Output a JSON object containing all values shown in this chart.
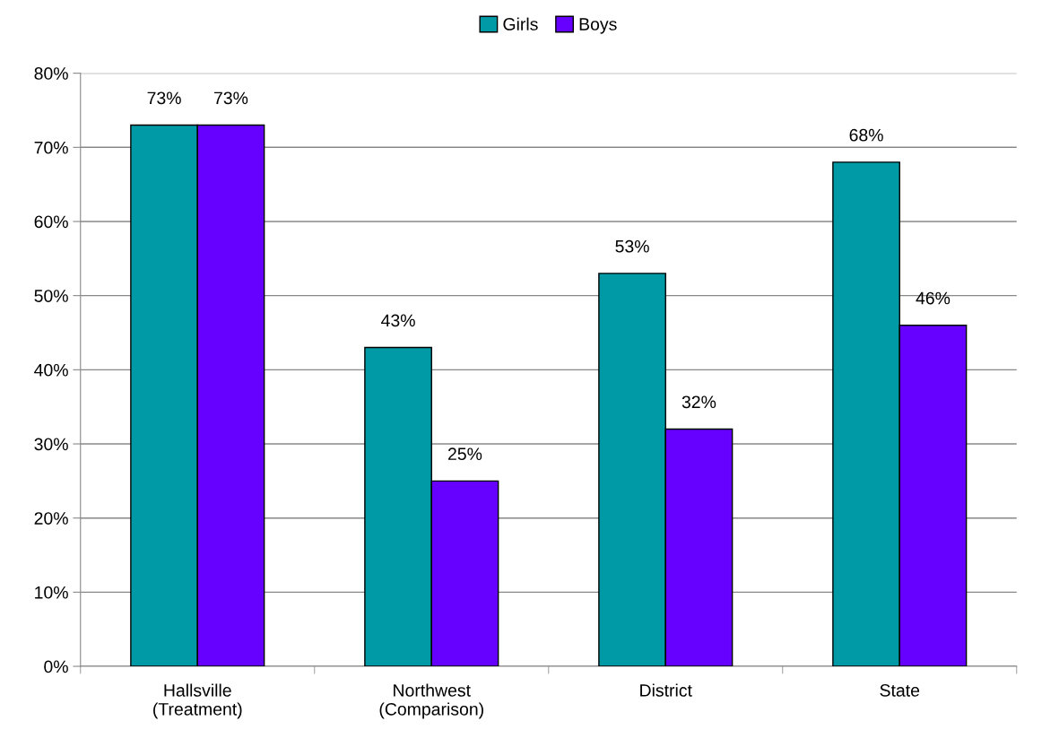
{
  "chart_data": {
    "type": "bar",
    "categories": [
      "Hallsville\n(Treatment)",
      "Northwest\n(Comparison)",
      "District",
      "State"
    ],
    "series": [
      {
        "name": "Girls",
        "color": "#009aa6",
        "values": [
          73,
          43,
          53,
          68
        ],
        "value_labels": [
          "73%",
          "43%",
          "53%",
          "68%"
        ]
      },
      {
        "name": "Boys",
        "color": "#6600ff",
        "values": [
          73,
          25,
          32,
          46
        ],
        "value_labels": [
          "73%",
          "25%",
          "32%",
          "46%"
        ]
      }
    ],
    "ylim": [
      0,
      80
    ],
    "yticks": [
      {
        "value": 0,
        "label": "0%"
      },
      {
        "value": 10,
        "label": "10%"
      },
      {
        "value": 20,
        "label": "20%"
      },
      {
        "value": 30,
        "label": "30%"
      },
      {
        "value": 40,
        "label": "40%"
      },
      {
        "value": 50,
        "label": "50%"
      },
      {
        "value": 60,
        "label": "60%"
      },
      {
        "value": 70,
        "label": "70%"
      },
      {
        "value": 80,
        "label": "80%"
      }
    ],
    "grid": "y",
    "legend": "top"
  }
}
